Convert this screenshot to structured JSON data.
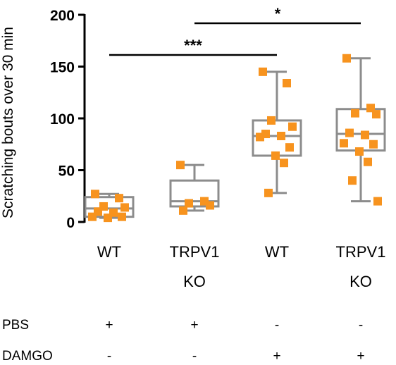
{
  "chart_data": {
    "type": "box",
    "ylabel": "Scratching bouts over 30 min",
    "ylim": [
      0,
      200
    ],
    "yticks": [
      0,
      50,
      100,
      150,
      200
    ],
    "groups": [
      {
        "label_lines": [
          "WT"
        ],
        "box": {
          "min": 4,
          "q1": 5,
          "median": 13,
          "q3": 24,
          "max": 27
        },
        "points": [
          27,
          23,
          15,
          14,
          10,
          9,
          5,
          5,
          4
        ]
      },
      {
        "label_lines": [
          "TRPV1",
          "KO"
        ],
        "box": {
          "min": 11,
          "q1": 15,
          "median": 20,
          "q3": 40,
          "max": 55
        },
        "points": [
          55,
          20,
          18,
          16,
          11
        ]
      },
      {
        "label_lines": [
          "WT"
        ],
        "box": {
          "min": 28,
          "q1": 64,
          "median": 83,
          "q3": 98,
          "max": 145
        },
        "points": [
          145,
          134,
          98,
          92,
          85,
          83,
          82,
          72,
          64,
          57,
          28
        ]
      },
      {
        "label_lines": [
          "TRPV1",
          "KO"
        ],
        "box": {
          "min": 20,
          "q1": 69,
          "median": 85,
          "q3": 109,
          "max": 158
        },
        "points": [
          158,
          110,
          105,
          104,
          86,
          84,
          76,
          75,
          68,
          58,
          40,
          20
        ]
      }
    ],
    "significance": [
      {
        "from_group": 0,
        "to_group": 2,
        "label": "***"
      },
      {
        "from_group": 1,
        "to_group": 3,
        "label": "*"
      }
    ],
    "conditions": [
      {
        "name": "PBS",
        "values": [
          "+",
          "+",
          "-",
          "-"
        ]
      },
      {
        "name": "DAMGO",
        "values": [
          "-",
          "-",
          "+",
          "+"
        ]
      }
    ],
    "colors": {
      "box": "#8c8c8c",
      "points": "#f7931e",
      "axis": "#000000"
    }
  }
}
